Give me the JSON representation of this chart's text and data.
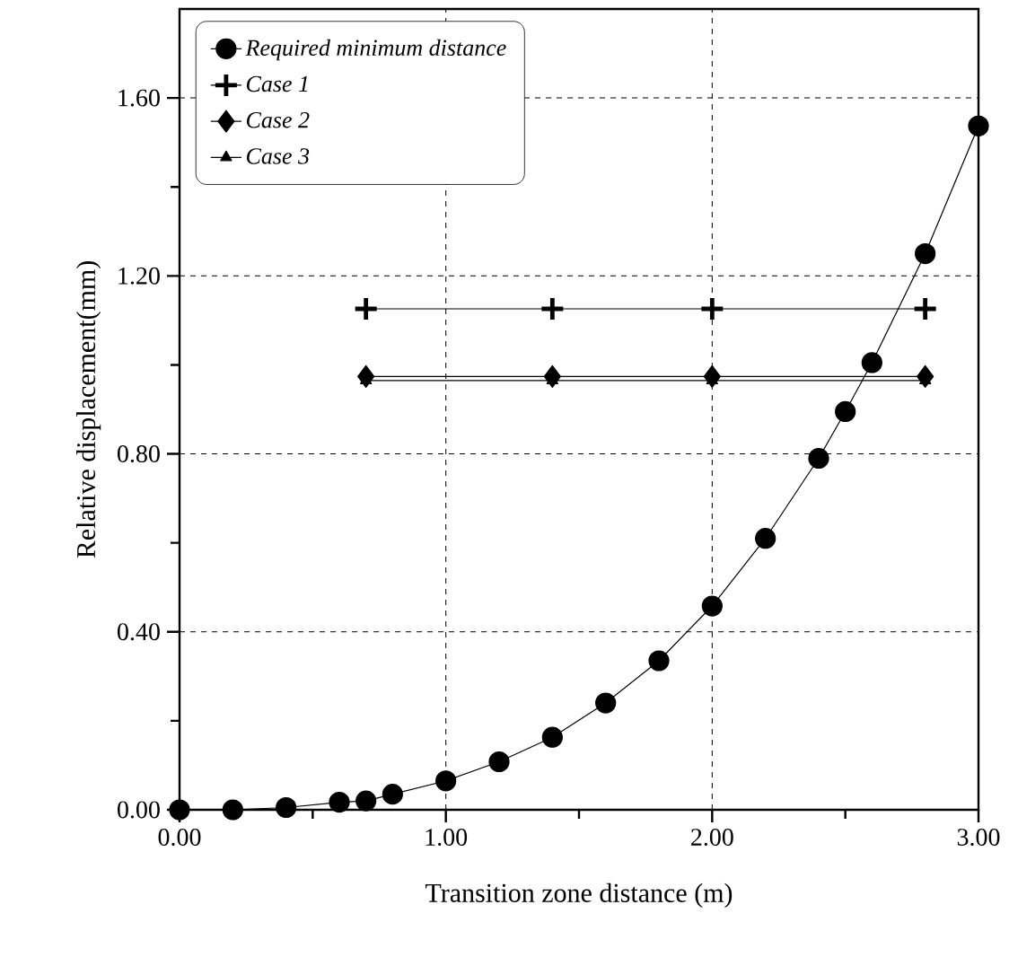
{
  "chart_data": {
    "type": "line",
    "xlabel": "Transition zone distance (m)",
    "ylabel": "Relative displacement(mm)",
    "xlim": [
      0,
      3.0
    ],
    "ylim": [
      0,
      1.8
    ],
    "xticks": [
      {
        "value": 0,
        "label": "0.00"
      },
      {
        "value": 0.5,
        "label": null
      },
      {
        "value": 1.0,
        "label": "1.00"
      },
      {
        "value": 1.5,
        "label": null
      },
      {
        "value": 2.0,
        "label": "2.00"
      },
      {
        "value": 2.5,
        "label": null
      },
      {
        "value": 3.0,
        "label": "3.00"
      }
    ],
    "yticks": [
      {
        "value": 0,
        "label": "0.00"
      },
      {
        "value": 0.2,
        "label": null
      },
      {
        "value": 0.4,
        "label": "0.40"
      },
      {
        "value": 0.6,
        "label": null
      },
      {
        "value": 0.8,
        "label": "0.80"
      },
      {
        "value": 1.0,
        "label": null
      },
      {
        "value": 1.2,
        "label": "1.20"
      },
      {
        "value": 1.4,
        "label": null
      },
      {
        "value": 1.6,
        "label": "1.60"
      }
    ],
    "grid": true,
    "legend": "top left",
    "line_style": "solid",
    "series": [
      {
        "name": "Required minimum distance",
        "color": "#000000",
        "marker": "circle",
        "x": [
          0,
          0.2,
          0.4,
          0.6,
          0.7,
          0.8,
          1.0,
          1.2,
          1.4,
          1.6,
          1.8,
          2.0,
          2.2,
          2.4,
          2.5,
          2.6,
          2.8,
          3.0
        ],
        "values": [
          0,
          0,
          0.005,
          0.017,
          0.02,
          0.035,
          0.065,
          0.108,
          0.163,
          0.24,
          0.335,
          0.458,
          0.61,
          0.79,
          0.895,
          1.005,
          1.25,
          1.537
        ]
      },
      {
        "name": "Case 1",
        "color": "#000000",
        "marker": "cross",
        "x": [
          0.7,
          1.4,
          2.0,
          2.8
        ],
        "values": [
          1.126,
          1.126,
          1.126,
          1.126
        ]
      },
      {
        "name": "Case 2",
        "color": "#000000",
        "marker": "diamond",
        "x": [
          0.7,
          1.4,
          2.0,
          2.8
        ],
        "values": [
          0.974,
          0.974,
          0.974,
          0.974
        ]
      },
      {
        "name": "Case 3",
        "color": "#000000",
        "marker": "triangle",
        "x": [
          0.7,
          1.4,
          2.0,
          2.8
        ],
        "values": [
          0.965,
          0.965,
          0.965,
          0.965
        ]
      }
    ]
  }
}
